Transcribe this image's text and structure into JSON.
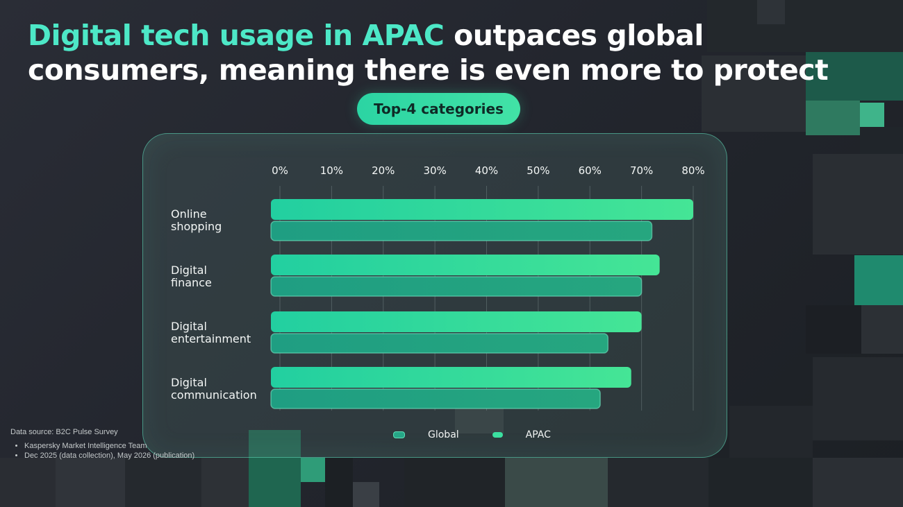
{
  "title": {
    "highlight": "Digital tech usage in APAC",
    "rest": " outpaces global consumers, meaning there is even more to protect"
  },
  "badge": "Top-4 categories",
  "colors": {
    "accent": "#4de8c7",
    "apac": "#3be0a0",
    "global": "#26a687",
    "background": "#262931"
  },
  "chart_data": {
    "type": "bar",
    "orientation": "horizontal",
    "categories": [
      "Online\nshopping",
      "Digital\nfinance",
      "Digital\nentertainment",
      "Digital\ncommunication"
    ],
    "series": [
      {
        "name": "APAC",
        "values": [
          80,
          73.5,
          70,
          68
        ]
      },
      {
        "name": "Global",
        "values": [
          72,
          70,
          63.5,
          62
        ]
      }
    ],
    "x_ticks": [
      "0%",
      "10%",
      "20%",
      "30%",
      "40%",
      "50%",
      "60%",
      "70%",
      "80%"
    ],
    "xlim": [
      0,
      80
    ],
    "grid": true,
    "legend_position": "bottom"
  },
  "legend": [
    {
      "label": "Global",
      "icon": "legend-swatch"
    },
    {
      "label": "APAC",
      "icon": "legend-swatch"
    }
  ],
  "footnote": {
    "source": "Data source: B2C Pulse Survey",
    "items": [
      "Kaspersky Market Intelligence Team",
      "Dec 2025 (data collection), May 2026 (publication)"
    ]
  }
}
